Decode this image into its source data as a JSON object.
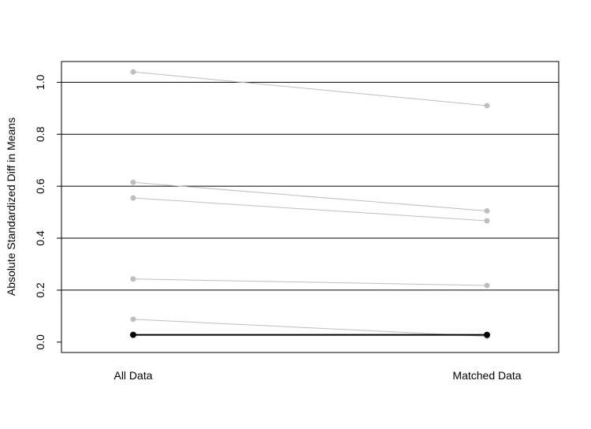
{
  "chart_data": {
    "type": "line",
    "title": "",
    "xlabel": "",
    "ylabel": "Absolute Standardized Diff in Means",
    "categories": [
      "All Data",
      "Matched Data"
    ],
    "ylim": [
      -0.04,
      1.08
    ],
    "yticks": [
      0.0,
      0.2,
      0.4,
      0.6,
      0.8,
      1.0
    ],
    "ytick_labels": [
      "0.0",
      "0.2",
      "0.4",
      "0.6",
      "0.8",
      "1.0"
    ],
    "reference_lines": [
      0.2,
      0.4,
      0.6,
      0.8,
      1.0
    ],
    "grid": false,
    "legend": "none",
    "series": [
      {
        "values": [
          1.04,
          0.91
        ],
        "color": "#bebebe"
      },
      {
        "values": [
          0.615,
          0.505
        ],
        "color": "#bebebe"
      },
      {
        "values": [
          0.555,
          0.467
        ],
        "color": "#bebebe"
      },
      {
        "values": [
          0.243,
          0.218
        ],
        "color": "#bebebe"
      },
      {
        "values": [
          0.088,
          0.022
        ],
        "color": "#bebebe"
      },
      {
        "values": [
          0.028,
          0.028
        ],
        "color": "#000000"
      }
    ],
    "colors": {
      "highlight": "#000000",
      "background_series": "#bebebe",
      "reference_line": "#000000"
    }
  }
}
